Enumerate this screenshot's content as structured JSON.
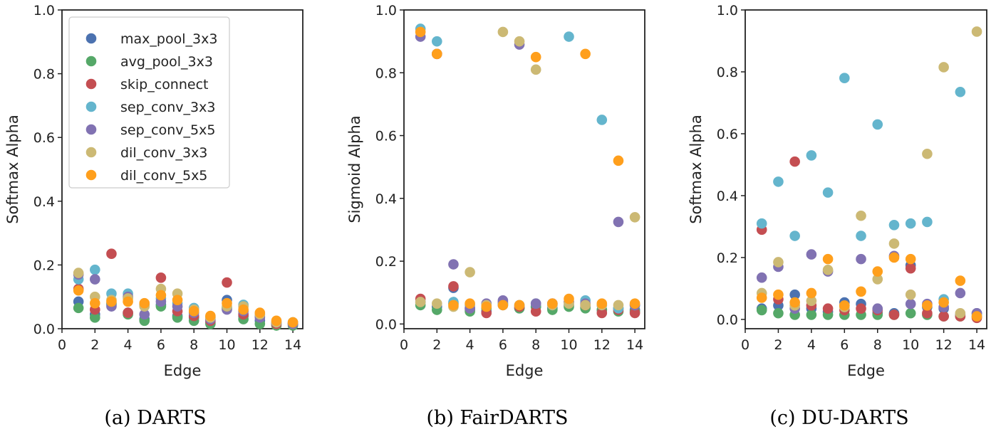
{
  "chart_data": [
    {
      "type": "scatter",
      "caption": "(a)  DARTS",
      "xlabel": "Edge",
      "ylabel": "Softmax Alpha",
      "xlim": [
        0,
        14.6
      ],
      "ylim": [
        0,
        1.0
      ],
      "xticks": [
        "0",
        "2",
        "4",
        "6",
        "8",
        "10",
        "12",
        "14"
      ],
      "yticks": [
        "0.0",
        "0.2",
        "0.4",
        "0.6",
        "0.8",
        "1.0"
      ],
      "legend_position": "top-left",
      "x": [
        1,
        2,
        3,
        4,
        5,
        6,
        7,
        8,
        9,
        10,
        11,
        12,
        13,
        14
      ],
      "series": [
        {
          "name": "max_pool_3x3",
          "color": "#4c72b0",
          "values": [
            0.085,
            0.045,
            0.08,
            0.05,
            0.03,
            0.075,
            0.04,
            0.035,
            0.02,
            0.09,
            0.04,
            0.025,
            0.015,
            0.015
          ]
        },
        {
          "name": "avg_pool_3x3",
          "color": "#55a868",
          "values": [
            0.065,
            0.035,
            0.075,
            0.045,
            0.025,
            0.07,
            0.035,
            0.025,
            0.015,
            0.065,
            0.03,
            0.015,
            0.01,
            0.01
          ]
        },
        {
          "name": "skip_connect",
          "color": "#c44e52",
          "values": [
            0.125,
            0.06,
            0.235,
            0.05,
            0.075,
            0.16,
            0.055,
            0.04,
            0.025,
            0.145,
            0.045,
            0.04,
            0.015,
            0.015
          ]
        },
        {
          "name": "sep_conv_3x3",
          "color": "#64b5cd",
          "values": [
            0.155,
            0.185,
            0.11,
            0.11,
            0.075,
            0.095,
            0.08,
            0.065,
            0.035,
            0.065,
            0.075,
            0.045,
            0.02,
            0.02
          ]
        },
        {
          "name": "sep_conv_5x5",
          "color": "#8172b2",
          "values": [
            0.17,
            0.155,
            0.07,
            0.1,
            0.045,
            0.085,
            0.07,
            0.05,
            0.03,
            0.06,
            0.055,
            0.035,
            0.02,
            0.015
          ]
        },
        {
          "name": "dil_conv_3x3",
          "color": "#ccb974",
          "values": [
            0.175,
            0.1,
            0.09,
            0.095,
            0.07,
            0.125,
            0.11,
            0.06,
            0.035,
            0.07,
            0.07,
            0.045,
            0.02,
            0.02
          ]
        },
        {
          "name": "dil_conv_5x5",
          "color": "#ff9f1c",
          "values": [
            0.12,
            0.08,
            0.085,
            0.085,
            0.08,
            0.105,
            0.09,
            0.055,
            0.04,
            0.08,
            0.06,
            0.05,
            0.025,
            0.02
          ]
        }
      ]
    },
    {
      "type": "scatter",
      "caption": "(b)  FairDARTS",
      "xlabel": "Edge",
      "ylabel": "Sigmoid Alpha",
      "xlim": [
        0,
        14.6
      ],
      "ylim": [
        -0.015,
        1.0
      ],
      "xticks": [
        "0",
        "2",
        "4",
        "6",
        "8",
        "10",
        "12",
        "14"
      ],
      "yticks": [
        "0.0",
        "0.2",
        "0.4",
        "0.6",
        "0.8",
        "1.0"
      ],
      "x": [
        1,
        2,
        3,
        4,
        5,
        6,
        7,
        8,
        9,
        10,
        11,
        12,
        13,
        14
      ],
      "series": [
        {
          "name": "max_pool_3x3",
          "color": "#4c72b0",
          "values": [
            0.07,
            0.055,
            0.115,
            0.045,
            0.04,
            0.06,
            0.05,
            0.055,
            0.05,
            0.06,
            0.055,
            0.045,
            0.05,
            0.045
          ]
        },
        {
          "name": "avg_pool_3x3",
          "color": "#55a868",
          "values": [
            0.06,
            0.045,
            0.065,
            0.04,
            0.05,
            0.065,
            0.05,
            0.055,
            0.045,
            0.055,
            0.05,
            0.045,
            0.04,
            0.04
          ]
        },
        {
          "name": "skip_connect",
          "color": "#c44e52",
          "values": [
            0.08,
            0.86,
            0.12,
            0.05,
            0.035,
            0.07,
            0.055,
            0.04,
            0.065,
            0.07,
            0.06,
            0.035,
            0.045,
            0.035
          ]
        },
        {
          "name": "sep_conv_3x3",
          "color": "#64b5cd",
          "values": [
            0.94,
            0.9,
            0.07,
            0.06,
            0.06,
            0.065,
            0.06,
            0.065,
            0.06,
            0.915,
            0.075,
            0.65,
            0.05,
            0.06
          ]
        },
        {
          "name": "sep_conv_5x5",
          "color": "#8172b2",
          "values": [
            0.915,
            0.86,
            0.19,
            0.05,
            0.065,
            0.075,
            0.89,
            0.065,
            0.065,
            0.07,
            0.065,
            0.06,
            0.325,
            0.06
          ]
        },
        {
          "name": "dil_conv_3x3",
          "color": "#ccb974",
          "values": [
            0.07,
            0.065,
            0.055,
            0.165,
            0.06,
            0.93,
            0.9,
            0.81,
            0.06,
            0.065,
            0.06,
            0.06,
            0.06,
            0.34
          ]
        },
        {
          "name": "dil_conv_5x5",
          "color": "#ff9f1c",
          "values": [
            0.93,
            0.86,
            0.06,
            0.065,
            0.055,
            0.06,
            0.06,
            0.85,
            0.065,
            0.08,
            0.86,
            0.065,
            0.52,
            0.065
          ]
        }
      ]
    },
    {
      "type": "scatter",
      "caption": "(c)  DU-DARTS",
      "xlabel": "Edge",
      "ylabel": "Softmax Alpha",
      "xlim": [
        0,
        14.6
      ],
      "ylim": [
        -0.03,
        1.0
      ],
      "xticks": [
        "0",
        "2",
        "4",
        "6",
        "8",
        "10",
        "12",
        "14"
      ],
      "yticks": [
        "0.0",
        "0.2",
        "0.4",
        "0.6",
        "0.8",
        "1.0"
      ],
      "x": [
        1,
        2,
        3,
        4,
        5,
        6,
        7,
        8,
        9,
        10,
        11,
        12,
        13,
        14
      ],
      "series": [
        {
          "name": "max_pool_3x3",
          "color": "#4c72b0",
          "values": [
            0.035,
            0.045,
            0.08,
            0.035,
            0.025,
            0.055,
            0.05,
            0.02,
            0.02,
            0.175,
            0.04,
            0.035,
            0.015,
            0.02
          ]
        },
        {
          "name": "avg_pool_3x3",
          "color": "#55a868",
          "values": [
            0.03,
            0.02,
            0.015,
            0.015,
            0.015,
            0.015,
            0.015,
            0.015,
            0.015,
            0.02,
            0.015,
            0.01,
            0.01,
            0.01
          ]
        },
        {
          "name": "skip_connect",
          "color": "#c44e52",
          "values": [
            0.29,
            0.065,
            0.51,
            0.045,
            0.035,
            0.03,
            0.035,
            0.03,
            0.015,
            0.165,
            0.02,
            0.01,
            0.01,
            0.005
          ]
        },
        {
          "name": "sep_conv_3x3",
          "color": "#64b5cd",
          "values": [
            0.31,
            0.445,
            0.27,
            0.53,
            0.41,
            0.78,
            0.27,
            0.63,
            0.305,
            0.31,
            0.315,
            0.065,
            0.735,
            0.015
          ]
        },
        {
          "name": "sep_conv_5x5",
          "color": "#8172b2",
          "values": [
            0.135,
            0.17,
            0.035,
            0.21,
            0.155,
            0.045,
            0.195,
            0.035,
            0.205,
            0.05,
            0.05,
            0.04,
            0.085,
            0.02
          ]
        },
        {
          "name": "dil_conv_3x3",
          "color": "#ccb974",
          "values": [
            0.085,
            0.185,
            0.045,
            0.06,
            0.16,
            0.04,
            0.335,
            0.13,
            0.245,
            0.08,
            0.535,
            0.815,
            0.02,
            0.93
          ]
        },
        {
          "name": "dil_conv_5x5",
          "color": "#ff9f1c",
          "values": [
            0.07,
            0.08,
            0.055,
            0.085,
            0.195,
            0.045,
            0.09,
            0.155,
            0.2,
            0.195,
            0.045,
            0.055,
            0.125,
            0.01
          ]
        }
      ]
    }
  ]
}
